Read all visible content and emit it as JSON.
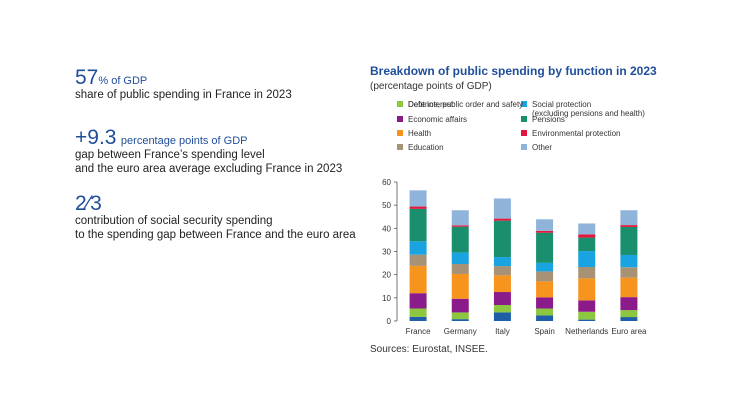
{
  "stats": [
    {
      "value": "57",
      "unit": "% of GDP",
      "lines": [
        "share of public spending in France in 2023"
      ]
    },
    {
      "value": "+9.3",
      "unit": "percentage points of GDP",
      "lines": [
        "gap between France’s spending level",
        "and the euro area average excluding France in 2023"
      ]
    },
    {
      "value": "2⁄3",
      "unit": "",
      "lines": [
        "contribution of social security spending",
        "to the spending gap between France and the euro area"
      ]
    }
  ],
  "source": "Sources: Eurostat, INSEE.",
  "chart_data": {
    "type": "bar",
    "stacked": true,
    "title": "Breakdown of public spending by function in 2023",
    "subtitle": "(percentage points of GDP)",
    "categories": [
      "France",
      "Germany",
      "Italy",
      "Spain",
      "Netherlands",
      "Euro area"
    ],
    "ylim": [
      0,
      60
    ],
    "yticks": [
      0,
      10,
      20,
      30,
      40,
      50,
      60
    ],
    "grid": false,
    "legend_position": "top",
    "series": [
      {
        "name": "Debt interest",
        "color": "#1f5fa8",
        "values": [
          1.8,
          0.8,
          3.7,
          2.4,
          0.6,
          1.7
        ]
      },
      {
        "name": "Defence, public order and safety",
        "color": "#8dc63f",
        "values": [
          3.6,
          2.9,
          3.2,
          3.0,
          3.4,
          3.0
        ]
      },
      {
        "name": "Economic affairs",
        "color": "#8b1a8b",
        "values": [
          6.6,
          5.9,
          5.6,
          4.8,
          4.9,
          5.6
        ]
      },
      {
        "name": "Health",
        "color": "#f7941d",
        "values": [
          11.8,
          10.7,
          7.2,
          6.9,
          9.5,
          8.4
        ]
      },
      {
        "name": "Education",
        "color": "#a89275",
        "values": [
          4.8,
          4.3,
          4.0,
          4.3,
          4.9,
          4.5
        ]
      },
      {
        "name": "Social protection",
        "sub": "(excluding pensions and health)",
        "color": "#19a3e0",
        "values": [
          5.8,
          5.0,
          3.9,
          3.7,
          6.9,
          5.3
        ]
      },
      {
        "name": "Pensions",
        "color": "#1a8f6e",
        "values": [
          14.0,
          11.1,
          15.7,
          13.0,
          5.8,
          12.1
        ]
      },
      {
        "name": "Environmental protection",
        "color": "#e3173e",
        "values": [
          1.0,
          0.6,
          0.9,
          0.8,
          1.4,
          0.8
        ]
      },
      {
        "name": "Other",
        "color": "#8fb3d9",
        "values": [
          7.0,
          6.5,
          8.7,
          5.0,
          4.7,
          6.4
        ]
      }
    ]
  }
}
